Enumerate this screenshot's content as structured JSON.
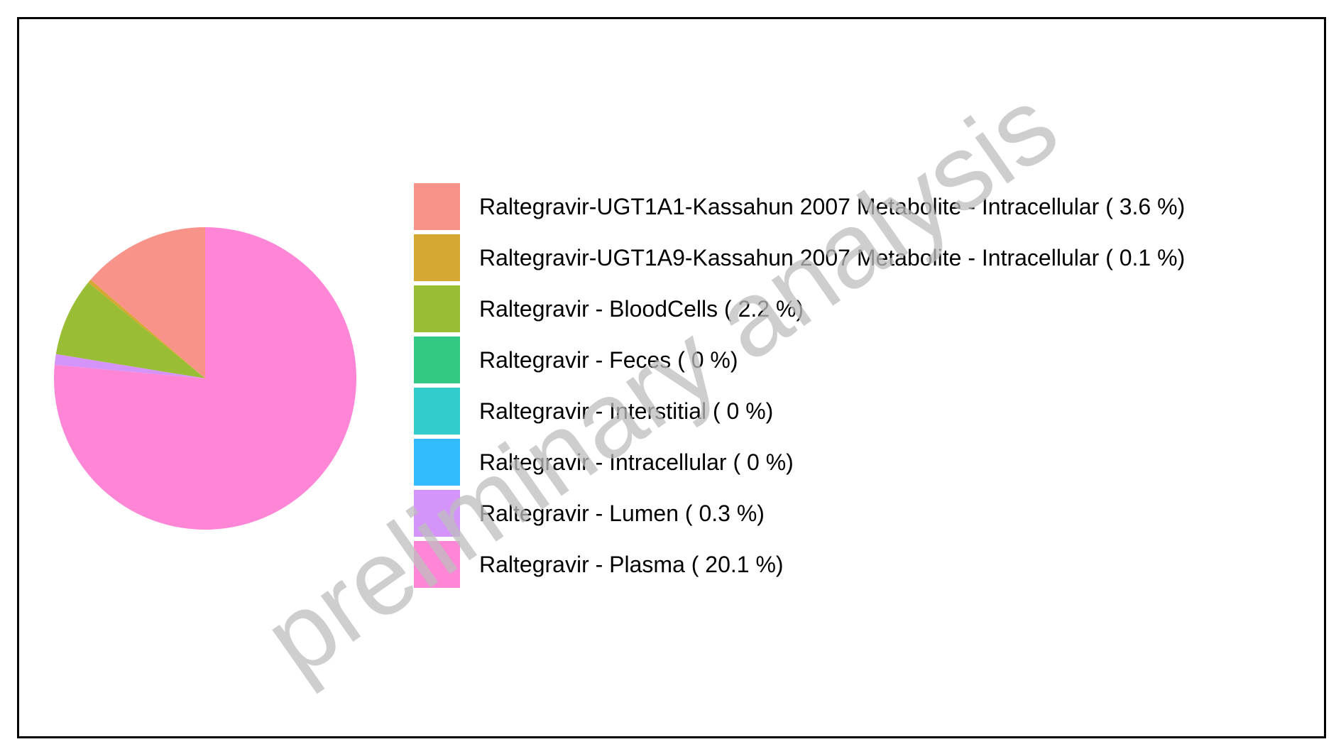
{
  "chart_data": {
    "type": "pie",
    "title": "",
    "start_angle_deg": 0,
    "direction": "counterclockwise",
    "slices": [
      {
        "label": "Raltegravir-UGT1A1-Kassahun 2007 Metabolite - Intracellular  ( 3.6 %)",
        "value": 3.6,
        "color": "#F8938A"
      },
      {
        "label": "Raltegravir-UGT1A9-Kassahun 2007 Metabolite - Intracellular  ( 0.1 %)",
        "value": 0.1,
        "color": "#D4A832"
      },
      {
        "label": "Raltegravir - BloodCells  ( 2.2 %)",
        "value": 2.2,
        "color": "#9ABD36"
      },
      {
        "label": "Raltegravir - Feces  ( 0 %)",
        "value": 0,
        "color": "#33C985"
      },
      {
        "label": "Raltegravir - Interstitial  ( 0 %)",
        "value": 0,
        "color": "#33CCCC"
      },
      {
        "label": "Raltegravir - Intracellular  ( 0 %)",
        "value": 0,
        "color": "#33BBFF"
      },
      {
        "label": "Raltegravir - Lumen  ( 0.3 %)",
        "value": 0.3,
        "color": "#D494FA"
      },
      {
        "label": "Raltegravir - Plasma  ( 20.1 %)",
        "value": 20.1,
        "color": "#FF85D6"
      }
    ],
    "legend_position": "right"
  },
  "watermark": "preliminary analysis"
}
